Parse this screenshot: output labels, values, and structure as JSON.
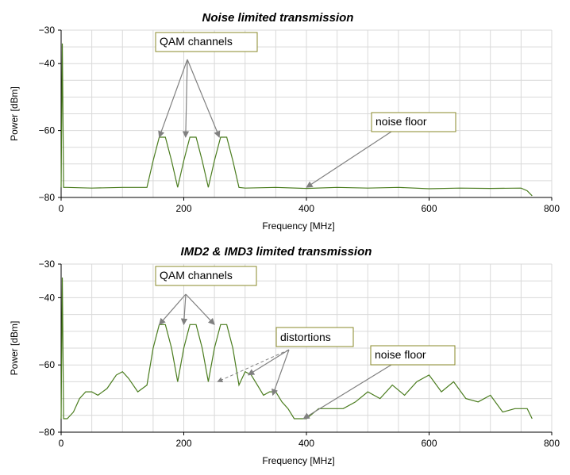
{
  "chart_data": [
    {
      "type": "line",
      "title": "Noise  limited transmission",
      "xlabel": "Frequency [MHz]",
      "ylabel": "Power [dBm]",
      "xlim": [
        0,
        800
      ],
      "ylim": [
        -80,
        -30
      ],
      "xticks": [
        0,
        200,
        400,
        600,
        800
      ],
      "yticks": [
        -30,
        -40,
        -60,
        -80
      ],
      "grid": true,
      "series": [
        {
          "color": "#4a7c1e",
          "x": [
            0,
            2,
            4,
            10,
            50,
            100,
            140,
            150,
            160,
            170,
            180,
            190,
            200,
            210,
            220,
            230,
            240,
            250,
            260,
            270,
            280,
            290,
            300,
            350,
            400,
            450,
            500,
            550,
            600,
            650,
            700,
            750,
            760,
            768
          ],
          "y": [
            -77,
            -34,
            -77,
            -77,
            -77.2,
            -77,
            -77,
            -69,
            -62,
            -62,
            -69,
            -77,
            -69,
            -62,
            -62,
            -69,
            -77,
            -69,
            -62,
            -62,
            -69,
            -77,
            -77.2,
            -77,
            -77.3,
            -77,
            -77.2,
            -77,
            -77.4,
            -77.2,
            -77.3,
            -77.2,
            -78,
            -79.5
          ]
        }
      ],
      "annotations": [
        {
          "text": "QAM channels",
          "targets": [
            [
              160,
              -62
            ],
            [
              203,
              -62
            ],
            [
              258,
              -62
            ]
          ]
        },
        {
          "text": "noise floor",
          "targets": [
            [
              400,
              -77
            ]
          ]
        }
      ]
    },
    {
      "type": "line",
      "title": "IMD2  & IMD3  limited transmission",
      "xlabel": "Frequency [MHz]",
      "ylabel": "Power [dBm]",
      "xlim": [
        0,
        800
      ],
      "ylim": [
        -80,
        -30
      ],
      "xticks": [
        0,
        200,
        400,
        600,
        800
      ],
      "yticks": [
        -30,
        -40,
        -60,
        -80
      ],
      "grid": true,
      "series": [
        {
          "color": "#4a7c1e",
          "x": [
            0,
            2,
            4,
            10,
            20,
            30,
            40,
            50,
            60,
            75,
            90,
            100,
            110,
            125,
            140,
            150,
            160,
            170,
            180,
            190,
            200,
            210,
            220,
            230,
            240,
            250,
            260,
            270,
            280,
            290,
            300,
            310,
            320,
            330,
            340,
            350,
            360,
            370,
            380,
            400,
            420,
            440,
            460,
            480,
            500,
            520,
            540,
            560,
            580,
            600,
            620,
            640,
            660,
            680,
            700,
            720,
            740,
            760,
            768
          ],
          "y": [
            -76,
            -34,
            -76,
            -76,
            -74,
            -70,
            -68,
            -68,
            -69,
            -67,
            -63,
            -62,
            -64,
            -68,
            -66,
            -55,
            -48,
            -48,
            -55,
            -65,
            -55,
            -48,
            -48,
            -55,
            -65,
            -55,
            -48,
            -48,
            -55,
            -66,
            -62,
            -63,
            -66,
            -69,
            -68,
            -68,
            -71,
            -73,
            -76,
            -76,
            -73,
            -73,
            -73,
            -71,
            -68,
            -70,
            -66,
            -69,
            -65,
            -63,
            -68,
            -65,
            -70,
            -71,
            -69,
            -74,
            -73,
            -73,
            -76
          ]
        }
      ],
      "annotations": [
        {
          "text": "QAM channels",
          "targets": [
            [
              160,
              -48
            ],
            [
              200,
              -48
            ],
            [
              250,
              -48
            ]
          ]
        },
        {
          "text": "distortions",
          "targets": [
            [
              255,
              -65
            ],
            [
              305,
              -63
            ],
            [
              345,
              -69
            ]
          ]
        },
        {
          "text": "noise floor",
          "targets": [
            [
              395,
              -76
            ]
          ]
        }
      ]
    }
  ]
}
